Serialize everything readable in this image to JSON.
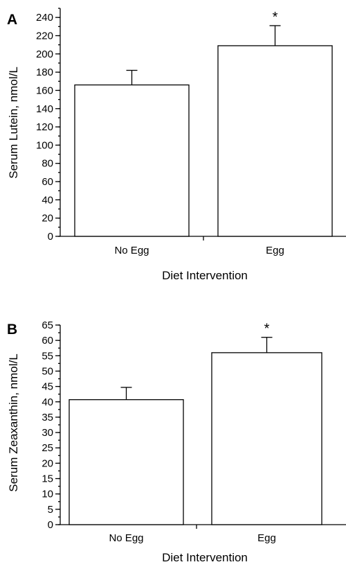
{
  "chart_data": [
    {
      "type": "bar",
      "panel_label": "A",
      "categories": [
        "No Egg",
        "Egg"
      ],
      "values": [
        166,
        209
      ],
      "error_bars": [
        16,
        22
      ],
      "significance": [
        "",
        "*"
      ],
      "title": "",
      "xlabel": "Diet Intervention",
      "ylabel": "Serum Lutein, nmol/L",
      "ylim": [
        0,
        250
      ],
      "yticks": [
        0,
        20,
        40,
        60,
        80,
        100,
        120,
        140,
        160,
        180,
        200,
        220,
        240
      ],
      "ytick_labels": [
        "0",
        "20",
        "40",
        "60",
        "80",
        "100",
        "120",
        "140",
        "160",
        "180",
        "200",
        "220",
        "240"
      ],
      "minor_tick_step": 10,
      "grid": false,
      "legend": "none"
    },
    {
      "type": "bar",
      "panel_label": "B",
      "categories": [
        "No Egg",
        "Egg"
      ],
      "values": [
        40.7,
        56
      ],
      "error_bars": [
        4,
        5
      ],
      "significance": [
        "",
        "*"
      ],
      "title": "",
      "xlabel": "Diet Intervention",
      "ylabel": "Serum Zeaxanthin, nmol/L",
      "ylim": [
        0,
        65
      ],
      "yticks": [
        0,
        5,
        10,
        15,
        20,
        25,
        30,
        35,
        40,
        45,
        50,
        55,
        60,
        65
      ],
      "ytick_labels": [
        "0",
        "5",
        "10",
        "15",
        "20",
        "25",
        "30",
        "35",
        "40",
        "45",
        "50",
        "55",
        "60",
        "65"
      ],
      "minor_tick_step": 2.5,
      "grid": false,
      "legend": "none"
    }
  ]
}
